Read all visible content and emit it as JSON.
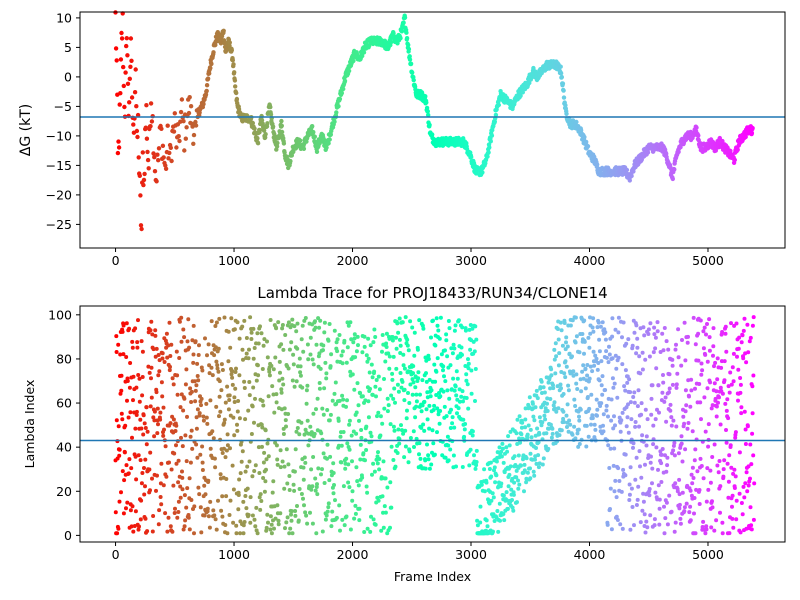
{
  "chart_data": [
    {
      "type": "scatter",
      "title": "",
      "xlabel": "",
      "ylabel": "ΔG (kT)",
      "xlim": [
        -300,
        5650
      ],
      "ylim": [
        -29,
        11
      ],
      "xticks": [
        0,
        1000,
        2000,
        3000,
        4000,
        5000
      ],
      "yticks": [
        10,
        5,
        0,
        -5,
        -10,
        -15,
        -20,
        -25
      ],
      "hline": -6.8,
      "hline_color": "#1f77b4",
      "colormap": "rainbow (reversed by frame index)",
      "grid": false,
      "points": [
        [
          0,
          10
        ],
        [
          10,
          2
        ],
        [
          20,
          -14
        ],
        [
          30,
          -10
        ],
        [
          40,
          -4
        ],
        [
          50,
          6
        ],
        [
          60,
          9
        ],
        [
          70,
          -2
        ],
        [
          80,
          -5
        ],
        [
          90,
          3
        ],
        [
          100,
          6
        ],
        [
          110,
          -8
        ],
        [
          120,
          1
        ],
        [
          130,
          4
        ],
        [
          140,
          -3
        ],
        [
          150,
          -10
        ],
        [
          160,
          -5
        ],
        [
          170,
          2
        ],
        [
          180,
          -12
        ],
        [
          190,
          -8
        ],
        [
          200,
          -16
        ],
        [
          210,
          -22
        ],
        [
          220,
          -26
        ],
        [
          230,
          -14
        ],
        [
          240,
          -18
        ],
        [
          250,
          -10
        ],
        [
          260,
          -6
        ],
        [
          270,
          -12
        ],
        [
          280,
          -15
        ],
        [
          290,
          -8
        ],
        [
          300,
          -3
        ],
        [
          320,
          -10
        ],
        [
          340,
          -17
        ],
        [
          360,
          -14
        ],
        [
          380,
          -9
        ],
        [
          400,
          -12
        ],
        [
          420,
          -16
        ],
        [
          440,
          -11
        ],
        [
          460,
          -14
        ],
        [
          480,
          -10
        ],
        [
          500,
          -8
        ],
        [
          520,
          -12
        ],
        [
          540,
          -9
        ],
        [
          560,
          -6
        ],
        [
          580,
          -10
        ],
        [
          600,
          -7
        ],
        [
          620,
          -5
        ],
        [
          650,
          -8
        ],
        [
          680,
          -10
        ],
        [
          700,
          -6
        ],
        [
          730,
          -5
        ],
        [
          760,
          -3
        ],
        [
          800,
          2
        ],
        [
          830,
          5
        ],
        [
          860,
          7
        ],
        [
          890,
          6
        ],
        [
          910,
          8
        ],
        [
          930,
          4
        ],
        [
          950,
          6
        ],
        [
          970,
          5
        ],
        [
          990,
          3
        ],
        [
          1010,
          -2
        ],
        [
          1030,
          -5
        ],
        [
          1060,
          -7
        ],
        [
          1100,
          -7
        ],
        [
          1140,
          -7
        ],
        [
          1170,
          -9
        ],
        [
          1200,
          -11
        ],
        [
          1230,
          -7
        ],
        [
          1260,
          -10
        ],
        [
          1300,
          -5
        ],
        [
          1330,
          -9
        ],
        [
          1360,
          -12
        ],
        [
          1400,
          -8
        ],
        [
          1430,
          -13
        ],
        [
          1460,
          -15
        ],
        [
          1500,
          -12
        ],
        [
          1540,
          -11
        ],
        [
          1580,
          -12
        ],
        [
          1620,
          -10
        ],
        [
          1660,
          -9
        ],
        [
          1700,
          -12
        ],
        [
          1740,
          -10
        ],
        [
          1780,
          -12
        ],
        [
          1820,
          -9
        ],
        [
          1860,
          -6
        ],
        [
          1900,
          -3
        ],
        [
          1940,
          0
        ],
        [
          1980,
          2
        ],
        [
          2020,
          4
        ],
        [
          2060,
          3
        ],
        [
          2100,
          5
        ],
        [
          2150,
          6
        ],
        [
          2200,
          6
        ],
        [
          2250,
          6
        ],
        [
          2300,
          5
        ],
        [
          2340,
          7
        ],
        [
          2380,
          6
        ],
        [
          2420,
          8
        ],
        [
          2440,
          10
        ],
        [
          2470,
          5
        ],
        [
          2510,
          0
        ],
        [
          2540,
          -3
        ],
        [
          2580,
          -3
        ],
        [
          2620,
          -4
        ],
        [
          2660,
          -10
        ],
        [
          2700,
          -11
        ],
        [
          2760,
          -11
        ],
        [
          2820,
          -11
        ],
        [
          2880,
          -11
        ],
        [
          2940,
          -11
        ],
        [
          2990,
          -13
        ],
        [
          3040,
          -16
        ],
        [
          3090,
          -16
        ],
        [
          3130,
          -14
        ],
        [
          3170,
          -10
        ],
        [
          3210,
          -6
        ],
        [
          3250,
          -3
        ],
        [
          3300,
          -4
        ],
        [
          3350,
          -5
        ],
        [
          3400,
          -3
        ],
        [
          3440,
          -2
        ],
        [
          3480,
          -1
        ],
        [
          3520,
          1
        ],
        [
          3560,
          0
        ],
        [
          3600,
          1
        ],
        [
          3640,
          2
        ],
        [
          3680,
          2
        ],
        [
          3720,
          2
        ],
        [
          3760,
          1
        ],
        [
          3800,
          -6
        ],
        [
          3840,
          -8
        ],
        [
          3880,
          -8
        ],
        [
          3920,
          -9
        ],
        [
          3960,
          -11
        ],
        [
          4000,
          -13
        ],
        [
          4040,
          -14
        ],
        [
          4080,
          -16
        ],
        [
          4140,
          -16
        ],
        [
          4200,
          -16
        ],
        [
          4260,
          -16
        ],
        [
          4300,
          -16
        ],
        [
          4340,
          -17
        ],
        [
          4380,
          -15
        ],
        [
          4420,
          -14
        ],
        [
          4460,
          -13
        ],
        [
          4500,
          -12
        ],
        [
          4540,
          -12
        ],
        [
          4580,
          -12
        ],
        [
          4620,
          -12
        ],
        [
          4660,
          -14
        ],
        [
          4700,
          -17
        ],
        [
          4740,
          -13
        ],
        [
          4780,
          -11
        ],
        [
          4820,
          -10
        ],
        [
          4860,
          -10
        ],
        [
          4900,
          -9
        ],
        [
          4940,
          -12
        ],
        [
          4980,
          -12
        ],
        [
          5020,
          -11
        ],
        [
          5060,
          -12
        ],
        [
          5100,
          -11
        ],
        [
          5140,
          -12
        ],
        [
          5180,
          -13
        ],
        [
          5220,
          -14
        ],
        [
          5260,
          -11
        ],
        [
          5300,
          -10
        ],
        [
          5340,
          -9
        ],
        [
          5380,
          -9
        ]
      ]
    },
    {
      "type": "scatter",
      "title": "Lambda Trace for PROJ18433/RUN34/CLONE14",
      "xlabel": "Frame Index",
      "ylabel": "Lambda Index",
      "xlim": [
        -300,
        5650
      ],
      "ylim": [
        -3,
        104
      ],
      "xticks": [
        0,
        1000,
        2000,
        3000,
        4000,
        5000
      ],
      "yticks": [
        0,
        20,
        40,
        60,
        80,
        100
      ],
      "hline": 43,
      "hline_color": "#1f77b4",
      "colormap": "rainbow (reversed by frame index)",
      "grid": false,
      "n_frames": 5390,
      "lambda_max": 99
    }
  ]
}
